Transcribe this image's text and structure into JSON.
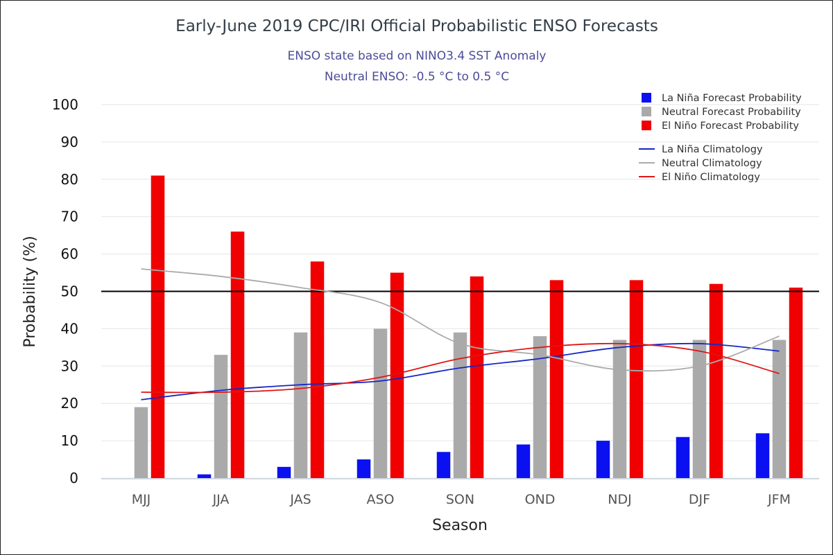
{
  "chart_data": {
    "type": "bar",
    "title": "Early-June 2019 CPC/IRI Official Probabilistic ENSO Forecasts",
    "subtitle": [
      "ENSO state based on NINO3.4 SST Anomaly",
      "Neutral ENSO: -0.5 °C to 0.5 °C"
    ],
    "xlabel": "Season",
    "ylabel": "Probability (%)",
    "ylim": [
      0,
      100
    ],
    "yticks": [
      0,
      10,
      20,
      30,
      40,
      50,
      60,
      70,
      80,
      90,
      100
    ],
    "reference_line": 50,
    "grid": true,
    "legend_position": "top-right",
    "categories": [
      "MJJ",
      "JJA",
      "JAS",
      "ASO",
      "SON",
      "OND",
      "NDJ",
      "DJF",
      "JFM"
    ],
    "series": [
      {
        "name": "La Niña Forecast Probability",
        "kind": "bar",
        "color": "#0a10f0",
        "values": [
          0,
          1,
          3,
          5,
          7,
          9,
          10,
          11,
          12
        ]
      },
      {
        "name": "Neutral Forecast Probability",
        "kind": "bar",
        "color": "#aaaaaa",
        "values": [
          19,
          33,
          39,
          40,
          39,
          38,
          37,
          37,
          37
        ]
      },
      {
        "name": "El Niño Forecast Probability",
        "kind": "bar",
        "color": "#f00000",
        "values": [
          81,
          66,
          58,
          55,
          54,
          53,
          53,
          52,
          51
        ]
      },
      {
        "name": "La Niña Climatology",
        "kind": "line",
        "color": "#1426c8",
        "values": [
          21,
          23.5,
          25,
          26,
          29.5,
          32,
          35,
          36,
          34
        ]
      },
      {
        "name": "Neutral Climatology",
        "kind": "line",
        "color": "#aaaaaa",
        "values": [
          56,
          54,
          51,
          47,
          36,
          33,
          29,
          30,
          38
        ]
      },
      {
        "name": "El Niño Climatology",
        "kind": "line",
        "color": "#e01414",
        "values": [
          23,
          23,
          24,
          27,
          32,
          35,
          36,
          34,
          28
        ]
      }
    ]
  }
}
